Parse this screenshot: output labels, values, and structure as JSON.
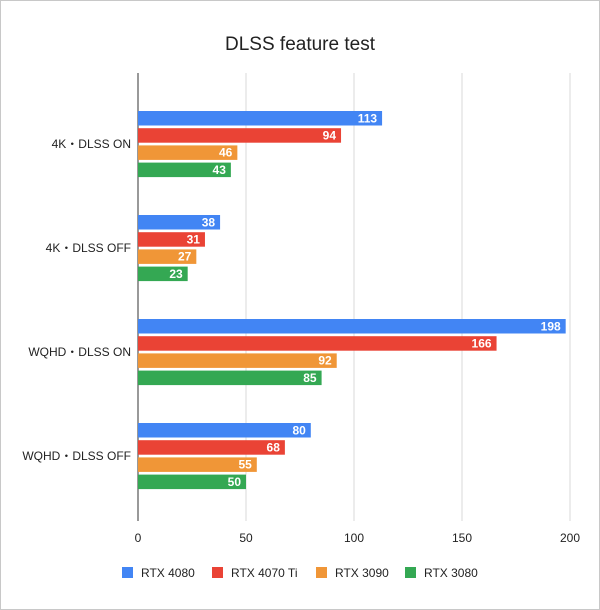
{
  "chart_data": {
    "type": "bar",
    "orientation": "horizontal",
    "title": "DLSS feature test",
    "xlabel": "",
    "ylabel": "",
    "categories": [
      "4K・DLSS ON",
      "4K・DLSS OFF",
      "WQHD・DLSS ON",
      "WQHD・DLSS OFF"
    ],
    "series": [
      {
        "name": "RTX 4080",
        "color": "#4285f4",
        "values": [
          113,
          38,
          198,
          80
        ]
      },
      {
        "name": "RTX 4070 Ti",
        "color": "#ea4335",
        "values": [
          94,
          31,
          166,
          68
        ]
      },
      {
        "name": "RTX 3090",
        "color": "#f09637",
        "values": [
          46,
          27,
          92,
          55
        ]
      },
      {
        "name": "RTX 3080",
        "color": "#34a853",
        "values": [
          43,
          23,
          85,
          50
        ]
      }
    ],
    "xlim": [
      0,
      200
    ],
    "xticks": [
      0,
      50,
      100,
      150,
      200
    ],
    "grid": true,
    "legend_position": "bottom"
  }
}
